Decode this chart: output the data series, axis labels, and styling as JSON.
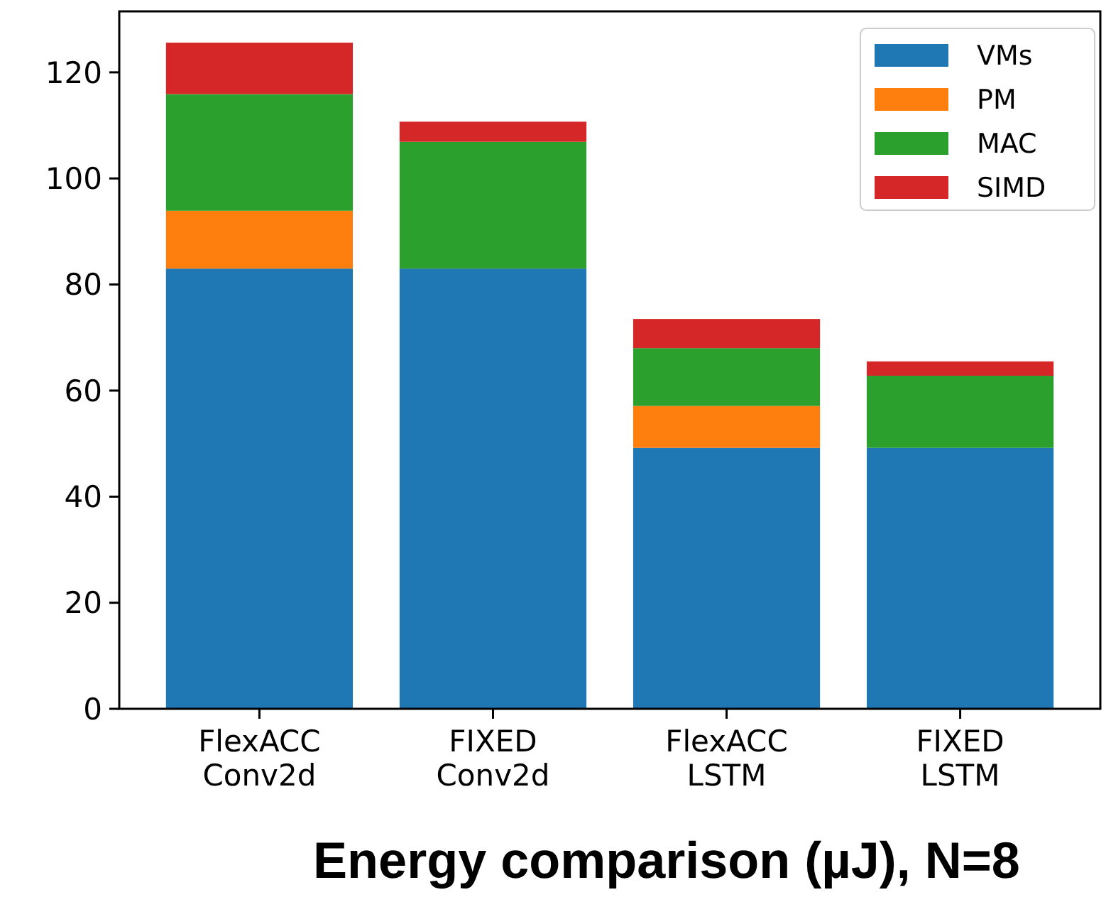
{
  "chart_data": {
    "type": "bar",
    "stacked": true,
    "xlabel": "Energy comparison (µJ), N=8",
    "categories": [
      "FlexACC\nConv2d",
      "FIXED\nConv2d",
      "FlexACC\nLSTM",
      "FIXED\nLSTM"
    ],
    "series": [
      {
        "name": "VMs",
        "color": "#1f77b4",
        "values": [
          83,
          83,
          49.2,
          49.2
        ]
      },
      {
        "name": "PM",
        "color": "#ff7f0e",
        "values": [
          10.9,
          0,
          7.9,
          0
        ]
      },
      {
        "name": "MAC",
        "color": "#2ca02c",
        "values": [
          22,
          23.9,
          10.9,
          13.6
        ]
      },
      {
        "name": "SIMD",
        "color": "#d62728",
        "values": [
          9.7,
          3.8,
          5.5,
          2.7
        ]
      }
    ],
    "ylim": [
      0,
      131.5
    ],
    "yticks": [
      0,
      20,
      40,
      60,
      80,
      100,
      120
    ],
    "grid": false,
    "legend": "top right"
  }
}
